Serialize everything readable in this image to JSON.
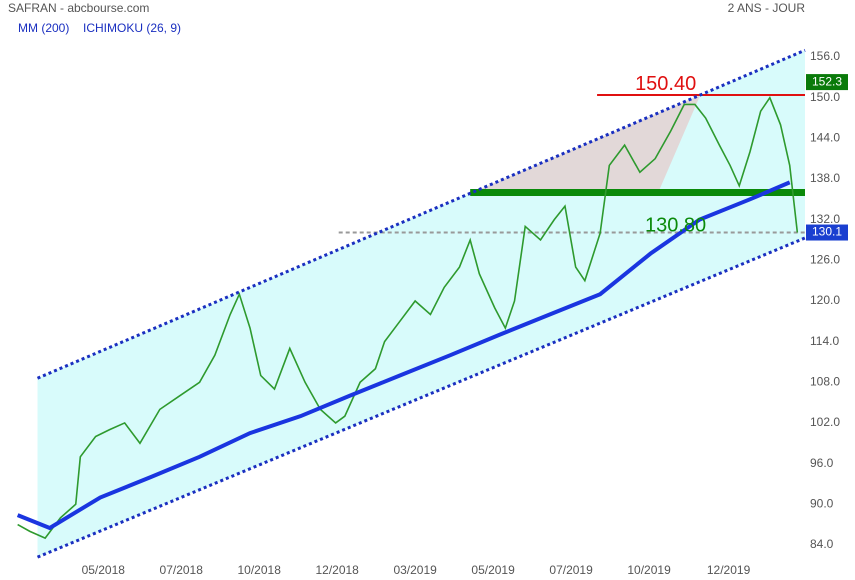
{
  "chart_data": {
    "type": "line",
    "title": "SAFRAN - abcbourse.com",
    "period": "2 ANS - JOUR",
    "indicators": [
      "ICHIMOKU (26, 9)"
    ],
    "xlim": [
      0,
      520
    ],
    "xticks": [
      {
        "value": 61,
        "label": "05/2018"
      },
      {
        "value": 112,
        "label": "07/2018"
      },
      {
        "value": 163,
        "label": "10/2018"
      },
      {
        "value": 214,
        "label": "12/2018"
      },
      {
        "value": 265,
        "label": "03/2019"
      },
      {
        "value": 316,
        "label": "05/2019"
      },
      {
        "value": 367,
        "label": "07/2019"
      },
      {
        "value": 418,
        "label": "10/2019"
      },
      {
        "value": 470,
        "label": "12/2019"
      }
    ],
    "ylim": [
      80.3,
      162.2
    ],
    "yticks": [
      {
        "value": 84,
        "label": "84.0"
      },
      {
        "value": 90,
        "label": "90.0"
      },
      {
        "value": 96,
        "label": "96.0"
      },
      {
        "value": 102,
        "label": "102.0"
      },
      {
        "value": 108,
        "label": "108.0"
      },
      {
        "value": 114,
        "label": "114.0"
      },
      {
        "value": 120,
        "label": "120.0"
      },
      {
        "value": 126,
        "label": "126.0"
      },
      {
        "value": 132,
        "label": "132.0"
      },
      {
        "value": 138,
        "label": "138.0"
      },
      {
        "value": 144,
        "label": "144.0"
      },
      {
        "value": 150,
        "label": "150.0"
      },
      {
        "value": 156,
        "label": "156.0"
      }
    ],
    "series": [
      {
        "color": "#2e9a2e",
        "x": [
          5,
          13,
          23,
          33,
          43,
          46,
          56,
          65,
          75,
          85,
          98,
          111,
          124,
          134,
          144,
          150,
          157,
          164,
          173,
          183,
          193,
          203,
          213,
          219,
          229,
          239,
          245,
          255,
          265,
          275,
          284,
          294,
          301,
          307,
          317,
          324,
          330,
          337,
          347,
          356,
          363,
          370,
          376,
          386,
          392,
          402,
          412,
          422,
          432,
          441,
          448,
          455,
          464,
          471,
          477,
          484,
          491,
          497,
          504,
          510,
          515
        ],
        "values": [
          87,
          86,
          85,
          88,
          90,
          97,
          100,
          101,
          102,
          99,
          104,
          106,
          108,
          112,
          118,
          121,
          116,
          109,
          107,
          113,
          108,
          104,
          102,
          103,
          108,
          110,
          114,
          117,
          120,
          118,
          122,
          125,
          129,
          124,
          119,
          116,
          120,
          131,
          129,
          132,
          134,
          125,
          123,
          130,
          140,
          143,
          139,
          141,
          145,
          149,
          149,
          147,
          143,
          140,
          137,
          142,
          148,
          150,
          146,
          140,
          130.1
        ]
      },
      {
        "name": "MM (200)",
        "color": "#1a35e0",
        "x": [
          5,
          26,
          59,
          92,
          124,
          157,
          190,
          222,
          255,
          288,
          320,
          353,
          386,
          419,
          451,
          484,
          510
        ],
        "values": [
          88.4,
          86.5,
          91,
          94,
          97,
          100.5,
          103,
          106,
          109,
          112,
          115,
          118,
          121,
          127,
          132,
          135,
          137.5
        ]
      }
    ],
    "channel": {
      "color": "#1a2fc0",
      "fill": "#d8fbfb",
      "upper": {
        "x": [
          18,
          520
        ],
        "values": [
          108.6,
          157
        ]
      },
      "lower": {
        "x": [
          18,
          520
        ],
        "values": [
          82.2,
          129.3
        ]
      }
    },
    "levels": [
      {
        "value": 150.4,
        "label": "150.40",
        "x": [
          384,
          520
        ],
        "color": "#e01010"
      },
      {
        "value": 136,
        "x": [
          301,
          384
        ],
        "color": "#e01010"
      },
      {
        "value": 136,
        "x": [
          301,
          520
        ],
        "color": "#0a8a0a"
      },
      {
        "value": 130.1,
        "x": [
          215,
          520
        ],
        "color": "#999999"
      }
    ],
    "annotations": [
      {
        "text": "130.80",
        "color": "#0a8a0a"
      }
    ],
    "last_values": [
      {
        "value": 152.3,
        "label": "152.3",
        "color": "#0a7a0a"
      },
      {
        "value": 130.1,
        "label": "130.1",
        "color": "#1a3fd0"
      }
    ]
  }
}
